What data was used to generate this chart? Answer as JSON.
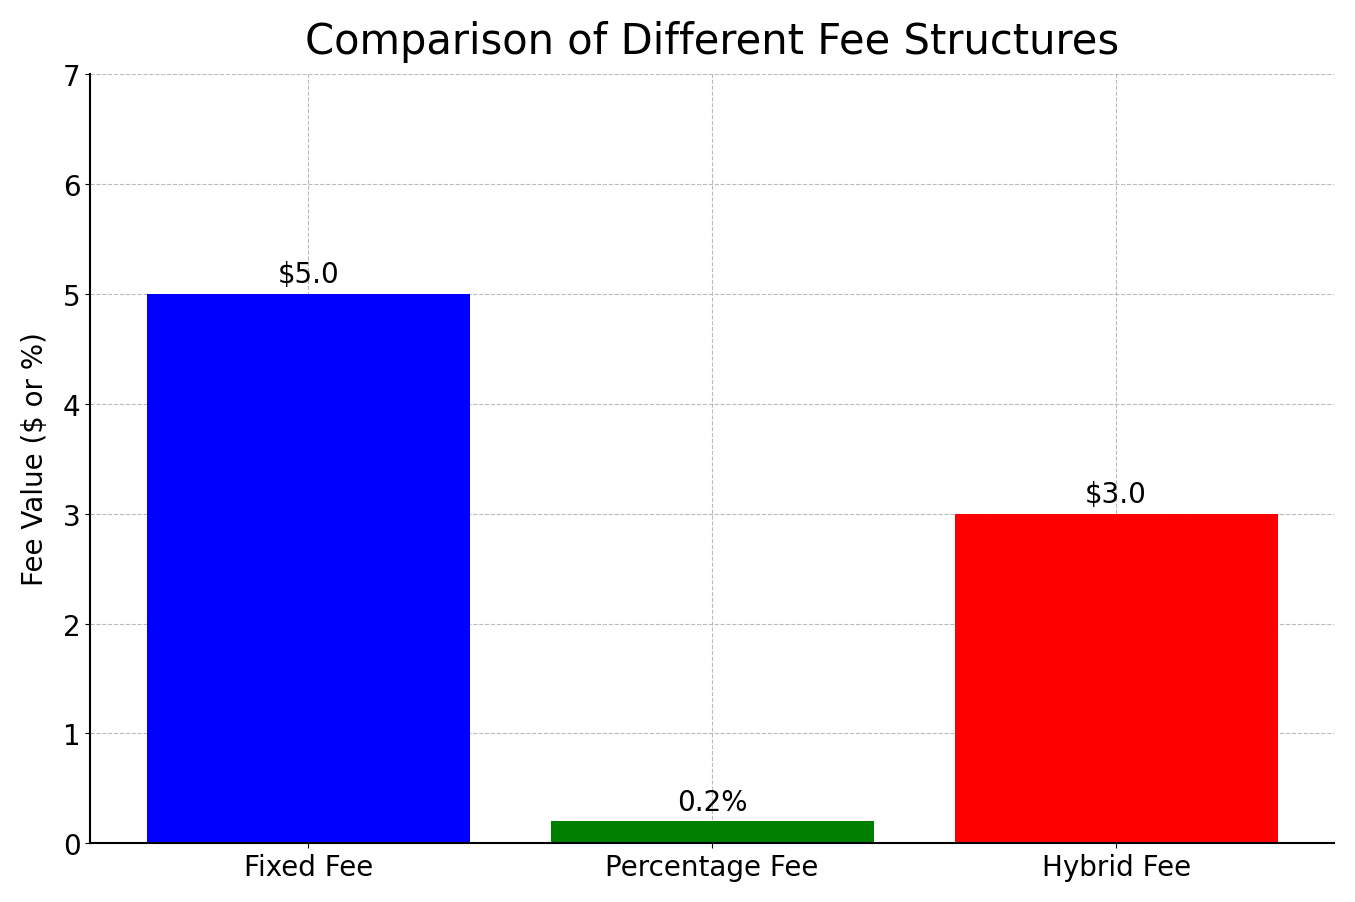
{
  "title": "Comparison of Different Fee Structures",
  "categories": [
    "Fixed Fee",
    "Percentage Fee",
    "Hybrid Fee"
  ],
  "values": [
    5.0,
    0.2,
    3.0
  ],
  "bar_colors": [
    "blue",
    "green",
    "red"
  ],
  "bar_labels": [
    "$5.0",
    "0.2%",
    "$3.0"
  ],
  "ylabel": "Fee Value ($ or %)",
  "ylim": [
    0,
    7
  ],
  "yticks": [
    0,
    1,
    2,
    3,
    4,
    5,
    6,
    7
  ],
  "title_fontsize": 30,
  "axis_label_fontsize": 20,
  "tick_fontsize": 20,
  "bar_label_fontsize": 20,
  "bar_width": 0.8,
  "grid_color": "#aaaaaa",
  "grid_linestyle": "--",
  "grid_alpha": 0.8,
  "background_color": "#ffffff"
}
